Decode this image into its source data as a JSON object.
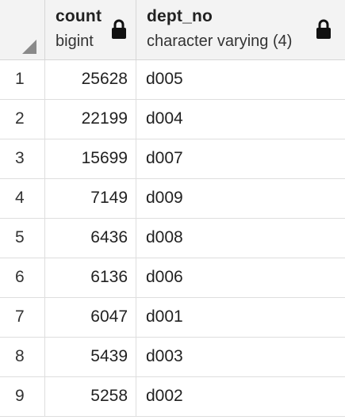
{
  "table": {
    "columns": [
      {
        "name": "count",
        "type": "bigint",
        "icon": "lock-icon"
      },
      {
        "name": "dept_no",
        "type": "character varying (4)",
        "icon": "lock-icon"
      }
    ],
    "rows": [
      {
        "index": "1",
        "count": "25628",
        "dept_no": "d005"
      },
      {
        "index": "2",
        "count": "22199",
        "dept_no": "d004"
      },
      {
        "index": "3",
        "count": "15699",
        "dept_no": "d007"
      },
      {
        "index": "4",
        "count": "7149",
        "dept_no": "d009"
      },
      {
        "index": "5",
        "count": "6436",
        "dept_no": "d008"
      },
      {
        "index": "6",
        "count": "6136",
        "dept_no": "d006"
      },
      {
        "index": "7",
        "count": "6047",
        "dept_no": "d001"
      },
      {
        "index": "8",
        "count": "5439",
        "dept_no": "d003"
      },
      {
        "index": "9",
        "count": "5258",
        "dept_no": "d002"
      }
    ]
  },
  "colors": {
    "header_bg": "#f3f3f3",
    "grid_line": "#dedede",
    "text": "#222222"
  }
}
